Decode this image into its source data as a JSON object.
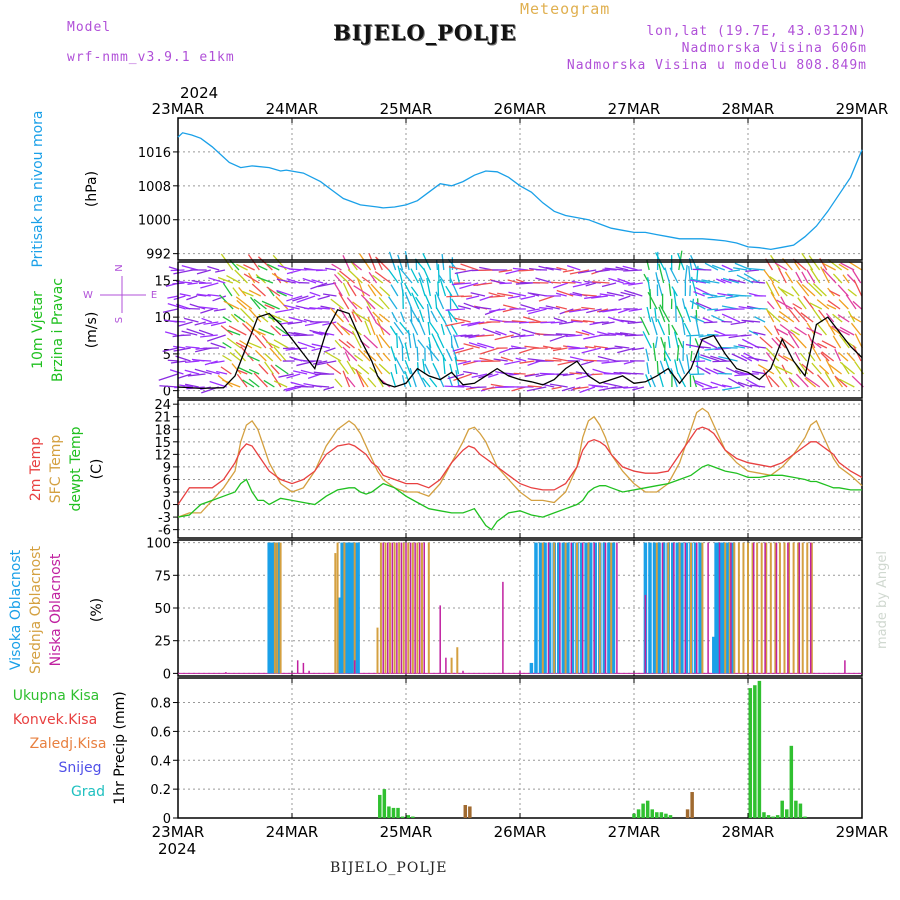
{
  "header": {
    "subtitle": "Meteogram",
    "model_label": "Model",
    "model_name": "wrf-nmm_v3.9.1 e1km",
    "title": "BIJELO_POLJE",
    "location": "lon,lat (19.7E, 43.0312N)",
    "elevation": "Nadmorska Visina 606m",
    "model_elevation": "Nadmorska Visina u modelu 808.849m",
    "bottom_title": "BIJELO_POLJE",
    "credit": "made by Angel"
  },
  "time_axis": {
    "year_top": "2024",
    "year_bottom": "2024",
    "labels": [
      "23MAR",
      "24MAR",
      "25MAR",
      "26MAR",
      "27MAR",
      "28MAR",
      "29MAR"
    ]
  },
  "colors": {
    "pressure": "#1aa0e8",
    "temp2m": "#e84040",
    "sfc_temp": "#d4a040",
    "dewpoint": "#20c020",
    "cloud_high": "#1aa0e8",
    "cloud_mid": "#d4a040",
    "cloud_low": "#c020a0",
    "precip_total": "#30c030",
    "precip_conv": "#e84040",
    "precip_frozen": "#e88040",
    "snow": "#5050e8",
    "graupel": "#20c0c0",
    "wind_speed": "#000000"
  },
  "chart_data": [
    {
      "type": "line",
      "panel": "pressure",
      "ylabel_main": "Pritisak na nivou mora",
      "ylabel_unit": "(hPa)",
      "yticks": [
        992,
        1000,
        1008,
        1016
      ],
      "ylim": [
        990.5,
        1024
      ],
      "x": [
        0,
        0.04,
        0.12,
        0.2,
        0.3,
        0.45,
        0.55,
        0.65,
        0.8,
        0.9,
        0.95,
        1.1,
        1.25,
        1.35,
        1.45,
        1.6,
        1.75,
        1.8,
        1.9,
        2.0,
        2.1,
        2.2,
        2.3,
        2.4,
        2.5,
        2.6,
        2.7,
        2.8,
        2.9,
        3.0,
        3.1,
        3.2,
        3.3,
        3.4,
        3.5,
        3.6,
        3.7,
        3.8,
        3.9,
        4.0,
        4.1,
        4.2,
        4.3,
        4.4,
        4.5,
        4.6,
        4.7,
        4.8,
        4.9,
        5.0,
        5.1,
        5.2,
        5.3,
        5.4,
        5.5,
        5.6,
        5.7,
        5.8,
        5.9,
        6.0
      ],
      "series": [
        {
          "values": [
            1019.5,
            1020.5,
            1020,
            1019.2,
            1017.2,
            1013.5,
            1012.3,
            1012.7,
            1012.3,
            1011.5,
            1011.7,
            1011,
            1009,
            1007,
            1005,
            1003.5,
            1003,
            1002.8,
            1003,
            1003.5,
            1004.5,
            1006.5,
            1008.5,
            1008,
            1009,
            1010.5,
            1011.5,
            1011.3,
            1010,
            1008,
            1006.5,
            1004,
            1002,
            1001,
            1000.5,
            1000,
            999,
            998,
            997.5,
            997,
            997,
            996.5,
            996,
            995.5,
            995.5,
            995.5,
            995.3,
            995,
            994.5,
            993.6,
            993.4,
            993,
            993.5,
            994,
            996,
            998.5,
            1002,
            1006,
            1010,
            1016.5
          ]
        }
      ]
    },
    {
      "type": "line",
      "panel": "wind",
      "ylabel_main": "10m Vjetar",
      "ylabel_sub": "Brzina i Pravac",
      "ylabel_unit": "(m/s)",
      "compass": [
        "N",
        "W",
        "E",
        "S"
      ],
      "yticks": [
        0,
        5,
        10,
        15
      ],
      "ylim": [
        -1,
        17.5
      ],
      "x": [
        0,
        0.2,
        0.4,
        0.5,
        0.6,
        0.7,
        0.8,
        0.9,
        1.0,
        1.1,
        1.2,
        1.3,
        1.4,
        1.5,
        1.6,
        1.7,
        1.75,
        1.8,
        1.9,
        2.0,
        2.1,
        2.2,
        2.3,
        2.4,
        2.5,
        2.6,
        2.7,
        2.8,
        2.9,
        3.0,
        3.1,
        3.2,
        3.3,
        3.4,
        3.5,
        3.6,
        3.7,
        3.8,
        3.9,
        4.0,
        4.1,
        4.2,
        4.3,
        4.4,
        4.5,
        4.6,
        4.7,
        4.8,
        4.9,
        5.0,
        5.1,
        5.2,
        5.3,
        5.4,
        5.5,
        5.6,
        5.7,
        5.8,
        5.9,
        6.0
      ],
      "series": [
        {
          "values": [
            0.5,
            0.3,
            0.4,
            2,
            6,
            10,
            10.5,
            9,
            7,
            5,
            3,
            8,
            11,
            10.5,
            7,
            4,
            2,
            1,
            0.5,
            1,
            3,
            2,
            1.5,
            2.5,
            0.8,
            1,
            2,
            3,
            2,
            1.5,
            1.2,
            0.8,
            1.5,
            3,
            4,
            2,
            1,
            1.5,
            2,
            1,
            1.2,
            2,
            3,
            1,
            3,
            7,
            7.5,
            5,
            3,
            2.5,
            1.5,
            3,
            7,
            4,
            2,
            9,
            10,
            8,
            6,
            4.5
          ]
        }
      ]
    },
    {
      "type": "line",
      "panel": "temperature",
      "ylabel_lines": [
        "2m Temp",
        "SFC Temp",
        "dewpt Temp"
      ],
      "ylabel_unit": "(C)",
      "yticks": [
        -6,
        -3,
        0,
        3,
        6,
        9,
        12,
        15,
        18,
        21,
        24
      ],
      "ylim": [
        -8,
        25
      ],
      "x": [
        0,
        0.1,
        0.2,
        0.3,
        0.4,
        0.5,
        0.55,
        0.6,
        0.65,
        0.7,
        0.75,
        0.8,
        0.9,
        1.0,
        1.1,
        1.2,
        1.3,
        1.4,
        1.5,
        1.55,
        1.6,
        1.65,
        1.7,
        1.75,
        1.8,
        1.9,
        2.0,
        2.1,
        2.2,
        2.3,
        2.4,
        2.5,
        2.55,
        2.6,
        2.65,
        2.7,
        2.75,
        2.8,
        2.9,
        3.0,
        3.1,
        3.2,
        3.3,
        3.4,
        3.5,
        3.55,
        3.6,
        3.65,
        3.7,
        3.75,
        3.8,
        3.9,
        4.0,
        4.1,
        4.2,
        4.3,
        4.4,
        4.5,
        4.55,
        4.6,
        4.65,
        4.7,
        4.75,
        4.8,
        4.9,
        5.0,
        5.1,
        5.2,
        5.3,
        5.4,
        5.5,
        5.55,
        5.6,
        5.65,
        5.7,
        5.75,
        5.8,
        5.9,
        6.0
      ],
      "series": [
        {
          "name": "2m Temp",
          "values": [
            0,
            4,
            4,
            4,
            6,
            10,
            13,
            14.5,
            14,
            12,
            10,
            8,
            6,
            5,
            6,
            8,
            12,
            14,
            14.5,
            14,
            13,
            12,
            10,
            9,
            7,
            6,
            5,
            5,
            4,
            6,
            10,
            13,
            14,
            13.5,
            12,
            11,
            10,
            9,
            7,
            5,
            4,
            3.5,
            3.5,
            5,
            9,
            13,
            15,
            15.5,
            15,
            14,
            12,
            9,
            8,
            7.5,
            7.5,
            8,
            12,
            16,
            18,
            18.5,
            18,
            17,
            15,
            13,
            11,
            10,
            9.5,
            9,
            10,
            12,
            14,
            15,
            15,
            14,
            13,
            12,
            10,
            8,
            6.5
          ]
        },
        {
          "name": "SFC Temp",
          "values": [
            -3,
            -2,
            -2,
            1,
            4,
            8,
            15,
            19,
            20,
            18,
            14,
            10,
            5,
            3,
            4,
            8,
            14,
            18,
            20,
            19,
            17,
            14,
            11,
            8,
            6,
            4,
            3,
            3,
            2,
            5,
            10,
            15,
            18,
            18.5,
            17,
            15,
            12,
            9,
            6,
            3,
            1,
            1,
            0.5,
            3,
            9,
            16,
            20,
            21,
            19,
            16,
            12,
            8,
            5,
            3,
            3,
            5,
            10,
            18,
            22,
            23,
            22,
            19,
            16,
            13,
            10,
            8,
            7.5,
            7,
            9,
            12,
            16,
            19,
            20,
            17,
            14,
            11,
            9,
            7,
            4.5
          ]
        },
        {
          "name": "dewpt Temp",
          "values": [
            -3,
            -2.5,
            0,
            1,
            2,
            3,
            5,
            6,
            3,
            1,
            1,
            0,
            1.5,
            1,
            0.5,
            0,
            2,
            3.5,
            4,
            4,
            3,
            2.5,
            3,
            4,
            5,
            4,
            2,
            0.5,
            -1,
            -1.5,
            -2,
            -2,
            -1.5,
            -1,
            -3,
            -5,
            -6,
            -4,
            -2,
            -1.5,
            -2.5,
            -3,
            -2,
            -1,
            0,
            1,
            3,
            4,
            4.5,
            4.5,
            4,
            3,
            3.5,
            4,
            4.5,
            5,
            6,
            7,
            8,
            9,
            9.5,
            9,
            8.5,
            8,
            7.5,
            6.5,
            6.5,
            7,
            7,
            6.5,
            6,
            5.5,
            5.5,
            5,
            4.5,
            4,
            4,
            3.5,
            3.5
          ]
        }
      ]
    },
    {
      "type": "bar",
      "panel": "cloud",
      "ylabel_lines": [
        "Visoka Oblacnost",
        "Srednja Oblacnost",
        "Niska Oblacnost"
      ],
      "ylabel_unit": "(%)",
      "yticks": [
        0,
        25,
        50,
        75,
        100
      ],
      "ylim": [
        -2,
        102
      ],
      "high": {
        "x": [
          0.8,
          0.82,
          0.84,
          0.86,
          0.88,
          1.42,
          1.44,
          1.46,
          1.48,
          1.5,
          1.52,
          1.54,
          1.56,
          1.58,
          3.1,
          3.14,
          3.18,
          3.22,
          3.26,
          3.3,
          3.34,
          3.38,
          3.42,
          3.46,
          3.5,
          3.54,
          3.58,
          3.62,
          3.66,
          3.7,
          3.74,
          3.78,
          3.82,
          4.1,
          4.14,
          4.18,
          4.22,
          4.26,
          4.3,
          4.34,
          4.38,
          4.42,
          4.46,
          4.5,
          4.54,
          4.58,
          4.7,
          4.72,
          4.74,
          4.76,
          4.78,
          4.8,
          4.82,
          4.84,
          4.86
        ],
        "values": [
          100,
          100,
          100,
          100,
          100,
          58,
          100,
          100,
          100,
          100,
          100,
          100,
          100,
          100,
          8,
          100,
          100,
          100,
          100,
          100,
          100,
          100,
          100,
          100,
          100,
          100,
          100,
          100,
          100,
          100,
          100,
          100,
          100,
          100,
          100,
          100,
          100,
          100,
          100,
          100,
          100,
          100,
          100,
          100,
          100,
          100,
          28,
          100,
          100,
          100,
          100,
          100,
          100,
          100,
          100
        ]
      },
      "mid": {
        "x": [
          0.85,
          0.87,
          0.9,
          1.38,
          1.4,
          1.46,
          1.55,
          1.75,
          1.78,
          1.82,
          1.86,
          1.9,
          1.94,
          1.98,
          2.02,
          2.06,
          2.1,
          2.14,
          2.2,
          2.4,
          2.45,
          3.2,
          3.3,
          3.4,
          3.5,
          3.6,
          3.7,
          3.8,
          4.2,
          4.3,
          4.4,
          4.5,
          4.6,
          4.8,
          4.84,
          4.88,
          4.92,
          4.96,
          5.0,
          5.04,
          5.08,
          5.12,
          5.16,
          5.2,
          5.24,
          5.28,
          5.32,
          5.36,
          5.4,
          5.44,
          5.48,
          5.52,
          5.56
        ],
        "values": [
          100,
          100,
          100,
          92,
          100,
          100,
          100,
          35,
          100,
          100,
          100,
          100,
          100,
          100,
          100,
          100,
          100,
          100,
          100,
          12,
          20,
          100,
          100,
          100,
          100,
          100,
          100,
          100,
          100,
          100,
          100,
          100,
          100,
          100,
          100,
          100,
          100,
          100,
          100,
          100,
          100,
          100,
          100,
          100,
          100,
          100,
          100,
          100,
          100,
          100,
          100,
          100,
          100
        ]
      },
      "low": {
        "x": [
          0.42,
          1.05,
          1.1,
          1.15,
          1.55,
          1.8,
          1.84,
          1.88,
          1.92,
          1.96,
          2.0,
          2.04,
          2.08,
          2.12,
          2.16,
          2.3,
          2.35,
          2.5,
          2.6,
          2.85,
          3.0,
          3.25,
          3.35,
          3.45,
          3.55,
          3.65,
          3.75,
          3.85,
          4.1,
          4.25,
          4.35,
          4.45,
          4.55,
          4.65,
          4.75,
          4.85,
          5.05,
          5.15,
          5.25,
          5.35,
          5.45,
          5.55,
          5.85
        ],
        "values": [
          1,
          10,
          8,
          2,
          10,
          100,
          100,
          100,
          100,
          100,
          100,
          100,
          100,
          100,
          100,
          52,
          12,
          2,
          0,
          70,
          2,
          100,
          100,
          100,
          100,
          100,
          100,
          100,
          60,
          100,
          100,
          100,
          100,
          100,
          100,
          100,
          100,
          100,
          100,
          100,
          100,
          100,
          10
        ]
      }
    },
    {
      "type": "bar",
      "panel": "precip",
      "ylabel_lines": [
        "Ukupna Kisa",
        "Konvek.Kisa",
        "Zaledj.Kisa",
        "Snijeg",
        "Grad"
      ],
      "ylabel_unit": "1hr Precip (mm)",
      "yticks": [
        0,
        0.2,
        0.4,
        0.6,
        0.8
      ],
      "ylim": [
        0,
        0.97
      ],
      "total": {
        "x": [
          1.77,
          1.81,
          1.85,
          1.89,
          1.93,
          1.97,
          2.02,
          2.06,
          4.0,
          4.04,
          4.08,
          4.12,
          4.16,
          4.2,
          4.24,
          4.28,
          4.32,
          5.02,
          5.06,
          5.1,
          5.14,
          5.18,
          5.22,
          5.26,
          5.3,
          5.34,
          5.38,
          5.42,
          5.46,
          5.5
        ],
        "values": [
          0.16,
          0.2,
          0.08,
          0.07,
          0.07,
          0.01,
          0.02,
          0.01,
          0.03,
          0.06,
          0.1,
          0.12,
          0.06,
          0.04,
          0.04,
          0.03,
          0.02,
          0.9,
          0.92,
          0.95,
          0.04,
          0.02,
          0.01,
          0.02,
          0.12,
          0.06,
          0.5,
          0.12,
          0.1,
          0.01
        ]
      },
      "frozen": {
        "x": [
          2.52,
          2.56,
          4.47,
          4.51
        ],
        "values": [
          0.09,
          0.08,
          0.06,
          0.18
        ]
      }
    }
  ]
}
